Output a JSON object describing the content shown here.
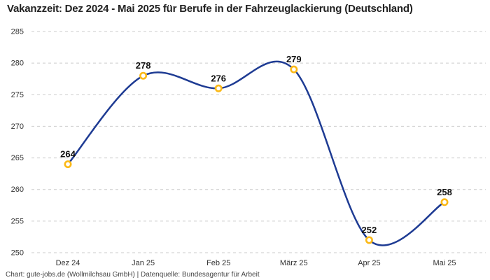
{
  "title": "Vakanzzeit: Dez 2024 - Mai 2025 für Berufe in der Fahrzeuglackierung (Deutschland)",
  "footer": "Chart: gute-jobs.de (Wollmilchsau GmbH) | Datenquelle: Bundesagentur für Arbeit",
  "chart_data": {
    "type": "line",
    "title": "Vakanzzeit: Dez 2024 - Mai 2025 für Berufe in der Fahrzeuglackierung (Deutschland)",
    "categories": [
      "Dez 24",
      "Jan 25",
      "Feb 25",
      "März 25",
      "Apr 25",
      "Mai 25"
    ],
    "values": [
      264,
      278,
      276,
      279,
      252,
      258
    ],
    "xlabel": "",
    "ylabel": "",
    "ylim": [
      250,
      285
    ],
    "ytick_step": 5,
    "yticks": [
      250,
      255,
      260,
      265,
      270,
      275,
      280,
      285
    ],
    "grid": "horizontal-dashed",
    "legend": "none",
    "curve": "smooth",
    "colors": {
      "line": "#1e3b93",
      "marker_ring": "#fbb917",
      "marker_fill": "#ffffff",
      "gridline": "#cbcbcb",
      "axis_text": "#333333",
      "value_label": "#111111"
    }
  }
}
